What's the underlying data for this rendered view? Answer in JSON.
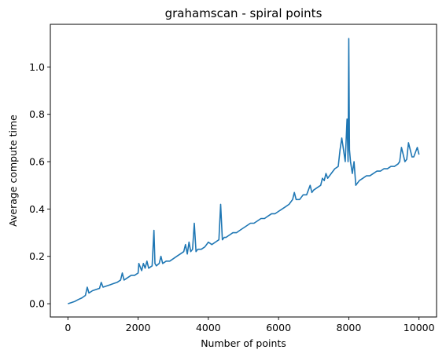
{
  "chart_data": {
    "type": "line",
    "title": "grahamscan - spiral points",
    "xlabel": "Number of points",
    "ylabel": "Average compute time",
    "xlim": [
      -500,
      10500
    ],
    "ylim": [
      -0.056,
      1.18
    ],
    "xticks": [
      0,
      2000,
      4000,
      6000,
      8000,
      10000
    ],
    "xtick_labels": [
      "0",
      "2000",
      "4000",
      "6000",
      "8000",
      "10000"
    ],
    "yticks": [
      0.0,
      0.2,
      0.4,
      0.6,
      0.8,
      1.0
    ],
    "ytick_labels": [
      "0.0",
      "0.2",
      "0.4",
      "0.6",
      "0.8",
      "1.0"
    ],
    "grid": false,
    "legend": "none",
    "series": [
      {
        "color": "#1f77b4",
        "x": [
          0,
          100,
          200,
          300,
          400,
          500,
          550,
          600,
          650,
          700,
          800,
          900,
          950,
          1000,
          1100,
          1200,
          1300,
          1400,
          1500,
          1550,
          1600,
          1700,
          1800,
          1900,
          2000,
          2020,
          2100,
          2150,
          2200,
          2250,
          2300,
          2400,
          2450,
          2480,
          2520,
          2600,
          2650,
          2700,
          2800,
          2900,
          3000,
          3100,
          3200,
          3300,
          3350,
          3400,
          3450,
          3500,
          3550,
          3600,
          3650,
          3700,
          3800,
          3900,
          4000,
          4100,
          4200,
          4300,
          4350,
          4400,
          4450,
          4500,
          4600,
          4700,
          4800,
          4900,
          5000,
          5100,
          5200,
          5300,
          5400,
          5500,
          5600,
          5700,
          5800,
          5900,
          6000,
          6100,
          6200,
          6300,
          6400,
          6450,
          6500,
          6600,
          6700,
          6800,
          6900,
          6950,
          7000,
          7100,
          7200,
          7250,
          7300,
          7350,
          7400,
          7500,
          7600,
          7700,
          7750,
          7800,
          7850,
          7900,
          7950,
          7980,
          8000,
          8020,
          8050,
          8100,
          8150,
          8200,
          8300,
          8400,
          8500,
          8600,
          8700,
          8800,
          8900,
          9000,
          9100,
          9200,
          9300,
          9400,
          9450,
          9500,
          9600,
          9650,
          9700,
          9800,
          9850,
          9900,
          9950,
          10000
        ],
        "y": [
          0.0,
          0.005,
          0.01,
          0.018,
          0.025,
          0.035,
          0.07,
          0.045,
          0.05,
          0.055,
          0.06,
          0.065,
          0.09,
          0.07,
          0.075,
          0.08,
          0.085,
          0.09,
          0.1,
          0.13,
          0.1,
          0.11,
          0.12,
          0.12,
          0.13,
          0.17,
          0.14,
          0.17,
          0.15,
          0.18,
          0.15,
          0.16,
          0.31,
          0.17,
          0.16,
          0.17,
          0.2,
          0.17,
          0.18,
          0.18,
          0.19,
          0.2,
          0.21,
          0.22,
          0.25,
          0.21,
          0.26,
          0.22,
          0.23,
          0.34,
          0.22,
          0.23,
          0.23,
          0.24,
          0.26,
          0.25,
          0.26,
          0.27,
          0.42,
          0.27,
          0.28,
          0.28,
          0.29,
          0.3,
          0.3,
          0.31,
          0.32,
          0.33,
          0.34,
          0.34,
          0.35,
          0.36,
          0.36,
          0.37,
          0.38,
          0.38,
          0.39,
          0.4,
          0.41,
          0.42,
          0.44,
          0.47,
          0.44,
          0.44,
          0.46,
          0.46,
          0.5,
          0.47,
          0.48,
          0.49,
          0.5,
          0.53,
          0.52,
          0.55,
          0.53,
          0.55,
          0.57,
          0.58,
          0.65,
          0.7,
          0.65,
          0.6,
          0.78,
          0.6,
          1.12,
          0.65,
          0.6,
          0.55,
          0.6,
          0.5,
          0.52,
          0.53,
          0.54,
          0.54,
          0.55,
          0.56,
          0.56,
          0.57,
          0.57,
          0.58,
          0.58,
          0.59,
          0.6,
          0.66,
          0.6,
          0.61,
          0.68,
          0.62,
          0.62,
          0.64,
          0.66,
          0.63
        ]
      }
    ]
  }
}
